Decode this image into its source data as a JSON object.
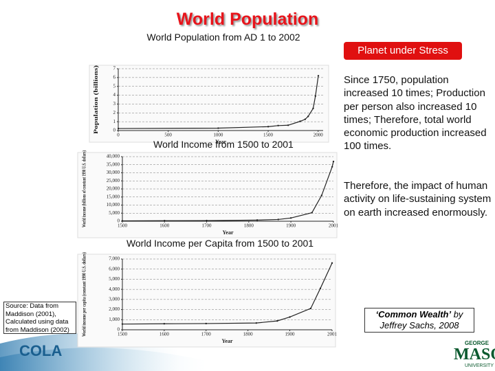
{
  "slide": {
    "title": "World Population",
    "stress_box": "Planet under Stress",
    "paragraph_1": "Since 1750, population increased 10 times; Production per person also increased 10 times; Therefore, total world economic production increased 100 times.",
    "paragraph_2": "Therefore, the impact of human activity on life-sustaining system on earth increased enormously.",
    "source": "Source: Data from Maddison (2001), Calculated using data from Maddison (2002)",
    "citation_title": "‘Common Wealth’",
    "citation_rest": " by Jeffrey Sachs, 2008",
    "logo_left": "COLA",
    "logo_right_top": "GEORGE",
    "logo_right": "MASON",
    "logo_right_bottom": "UNIVERSITY"
  },
  "chart_data": [
    {
      "type": "line",
      "title": "World Population from AD 1 to 2002",
      "xlabel": "Year",
      "ylabel": "Population (billions)",
      "x": [
        1,
        1000,
        1500,
        1600,
        1700,
        1820,
        1870,
        1900,
        1950,
        1973,
        2002
      ],
      "values": [
        0.23,
        0.27,
        0.44,
        0.56,
        0.6,
        1.04,
        1.27,
        1.6,
        2.5,
        3.9,
        6.2
      ],
      "color": "#222222",
      "xlim": [
        0,
        2050
      ],
      "ylim": [
        0,
        7
      ],
      "xticks": [
        0,
        500,
        1000,
        1500,
        2000
      ],
      "yticks": [
        0,
        1,
        2,
        3,
        4,
        5,
        6,
        7
      ],
      "grid": true
    },
    {
      "type": "line",
      "title": "World Income from 1500 to 2001",
      "xlabel": "Year",
      "ylabel": "World income (billions of constant 1990 U.S. dollars)",
      "x": [
        1500,
        1600,
        1700,
        1820,
        1870,
        1900,
        1950,
        1973,
        1998,
        2001
      ],
      "values": [
        250,
        330,
        370,
        690,
        1100,
        2000,
        5300,
        16000,
        33700,
        37000
      ],
      "color": "#222222",
      "xlim": [
        1500,
        2001
      ],
      "ylim": [
        0,
        40000
      ],
      "xticks": [
        1500,
        1600,
        1700,
        1800,
        1900,
        2001
      ],
      "yticks": [
        0,
        {
          "value": 5000,
          "label": "5,000"
        },
        {
          "value": 10000,
          "label": "10,000"
        },
        {
          "value": 15000,
          "label": "15,000"
        },
        {
          "value": 20000,
          "label": "20,000"
        },
        {
          "value": 25000,
          "label": "25,000"
        },
        {
          "value": 30000,
          "label": "30,000"
        },
        {
          "value": 35000,
          "label": "35,000"
        },
        {
          "value": 40000,
          "label": "40,000"
        }
      ],
      "grid": true
    },
    {
      "type": "line",
      "title": "World Income per Capita from 1500 to 2001",
      "xlabel": "Year",
      "ylabel": "World income per capita (constant 1990 U.S. dollars)",
      "x": [
        1500,
        1600,
        1700,
        1820,
        1870,
        1900,
        1950,
        1973,
        2001
      ],
      "values": [
        565,
        595,
        615,
        670,
        875,
        1260,
        2110,
        4090,
        6600
      ],
      "color": "#222222",
      "xlim": [
        1500,
        2001
      ],
      "ylim": [
        0,
        7000
      ],
      "xticks": [
        1500,
        1600,
        1700,
        1800,
        1900,
        2001
      ],
      "yticks": [
        0,
        {
          "value": 1000,
          "label": "1,000"
        },
        {
          "value": 2000,
          "label": "2,000"
        },
        {
          "value": 3000,
          "label": "3,000"
        },
        {
          "value": 4000,
          "label": "4,000"
        },
        {
          "value": 5000,
          "label": "5,000"
        },
        {
          "value": 6000,
          "label": "6,000"
        },
        {
          "value": 7000,
          "label": "7,000"
        }
      ],
      "grid": true
    }
  ]
}
